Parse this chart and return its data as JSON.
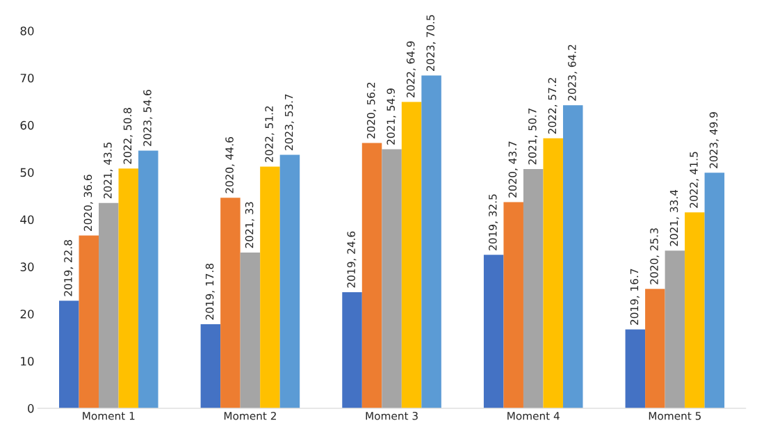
{
  "chart_data": {
    "type": "bar",
    "categories": [
      "Moment 1",
      "Moment 2",
      "Moment 3",
      "Moment 4",
      "Moment 5"
    ],
    "series": [
      {
        "color": "#4472c4",
        "values": [
          22.8,
          17.8,
          24.6,
          32.5,
          16.7
        ],
        "value_labels": [
          "2019, 22.8",
          "2019, 17.8",
          "2019, 24.6",
          "2019, 32.5",
          "2019, 16.7"
        ]
      },
      {
        "color": "#ed7d31",
        "values": [
          36.6,
          44.6,
          56.2,
          43.7,
          25.3
        ],
        "value_labels": [
          "2020, 36.6",
          "2020, 44.6",
          "2020, 56.2",
          "2020, 43.7",
          "2020, 25.3"
        ]
      },
      {
        "color": "#a5a5a5",
        "values": [
          43.5,
          33,
          54.9,
          50.7,
          33.4
        ],
        "value_labels": [
          "2021, 43.5",
          "2021, 33",
          "2021, 54.9",
          "2021, 50.7",
          "2021, 33.4"
        ]
      },
      {
        "color": "#ffc000",
        "values": [
          50.8,
          51.2,
          64.9,
          57.2,
          41.5
        ],
        "value_labels": [
          "2022, 50.8",
          "2022, 51.2",
          "2022, 64.9",
          "2022, 57.2",
          "2022, 41.5"
        ]
      },
      {
        "color": "#5b9bd5",
        "values": [
          54.6,
          53.7,
          70.5,
          64.2,
          49.9
        ],
        "value_labels": [
          "2023, 54.6",
          "2023, 53.7",
          "2023, 70.5",
          "2023, 64.2",
          "2023, 49.9"
        ]
      }
    ],
    "ylim": [
      0,
      80
    ],
    "yticks": [
      0,
      10,
      20,
      30,
      40,
      50,
      60,
      70,
      80
    ],
    "grid": false,
    "legend": false
  }
}
